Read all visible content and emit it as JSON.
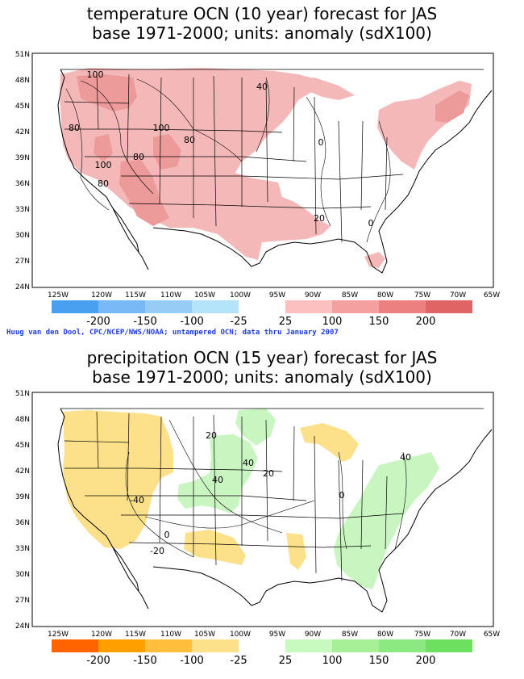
{
  "panels": [
    {
      "id": "temp",
      "title_line1": "temperature OCN (10 year) forecast for JAS",
      "title_line2": "base 1971-2000; units: anomaly (sdX100)",
      "lat_labels": [
        "51N",
        "48N",
        "45N",
        "42N",
        "39N",
        "36N",
        "33N",
        "30N",
        "27N",
        "24N"
      ],
      "lon_labels": [
        "125W",
        "120W",
        "115W",
        "110W",
        "105W",
        "100W",
        "95W",
        "90W",
        "85W",
        "80W",
        "75W",
        "70W",
        "65W"
      ],
      "colorbar_labels": [
        "-200",
        "-150",
        "-100",
        "-25",
        "25",
        "100",
        "150",
        "200"
      ],
      "colorbar_colors": [
        "#4aa0f0",
        "#78b8f4",
        "#96ccf6",
        "#b4e4fa",
        "#ffffff",
        "#fcc0c0",
        "#f4a0a0",
        "#ec8080",
        "#e06464"
      ],
      "contour_labels": [
        "100",
        "40",
        "80",
        "100",
        "80",
        "80",
        "100",
        "80",
        "0",
        "20",
        "0"
      ],
      "fill_color": "#f5b8b8"
    },
    {
      "id": "precip",
      "title_line1": "precipitation OCN (15 year) forecast for JAS",
      "title_line2": "base 1971-2000; units: anomaly (sdX100)",
      "lat_labels": [
        "51N",
        "48N",
        "45N",
        "42N",
        "39N",
        "36N",
        "33N",
        "30N",
        "27N",
        "24N"
      ],
      "lon_labels": [
        "125W",
        "120W",
        "115W",
        "110W",
        "105W",
        "100W",
        "95W",
        "90W",
        "85W",
        "80W",
        "75W",
        "70W",
        "65W"
      ],
      "colorbar_labels": [
        "-200",
        "-150",
        "-100",
        "-25",
        "25",
        "100",
        "150",
        "200"
      ],
      "colorbar_colors": [
        "#ff6400",
        "#ffa000",
        "#ffbe3c",
        "#fde08a",
        "#ffffff",
        "#c8fac0",
        "#a8f098",
        "#8ce880",
        "#6ee060"
      ],
      "contour_labels": [
        "20",
        "40",
        "20",
        "40",
        "-40",
        "0",
        "-20",
        "0",
        "40"
      ],
      "dry_color": "#fde08a",
      "wet_color": "#c8f5c0"
    }
  ],
  "credit": "Huug van den Dool, CPC/NCEP/NWS/NOAA; untampered OCN; data thru January 2007"
}
